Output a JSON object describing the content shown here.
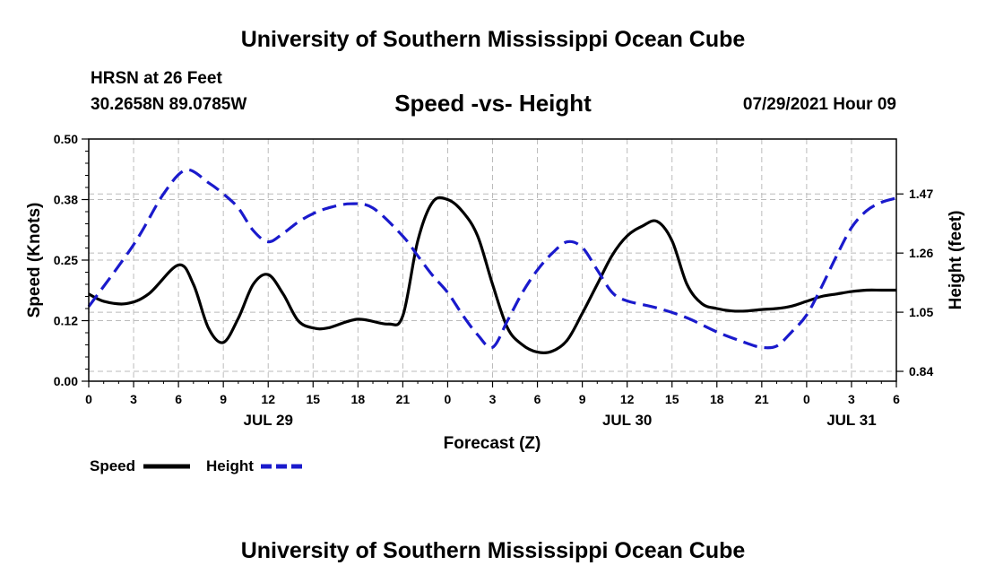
{
  "header": {
    "title": "University of Southern Mississippi Ocean Cube",
    "station": "HRSN at 26 Feet",
    "coords": "30.2658N  89.0785W",
    "subtitle": "Speed -vs- Height",
    "datetime": "07/29/2021 Hour 09"
  },
  "footer": {
    "title": "University of Southern Mississippi Ocean Cube"
  },
  "colors": {
    "speed": "#000000",
    "height": "#1a1acc",
    "grid": "#bbbbbb"
  },
  "chart_data": {
    "type": "line",
    "xlabel": "Forecast (Z)",
    "ylabel": "Speed (Knots)",
    "y2label": "Height (feet)",
    "xlim": [
      0,
      54
    ],
    "x_ticks": [
      0,
      3,
      6,
      9,
      12,
      15,
      18,
      21,
      24,
      27,
      30,
      33,
      36,
      39,
      42,
      45,
      48,
      51,
      54
    ],
    "x_tick_labels": [
      "0",
      "3",
      "6",
      "9",
      "12",
      "15",
      "18",
      "21",
      "0",
      "3",
      "6",
      "9",
      "12",
      "15",
      "18",
      "21",
      "0",
      "3",
      "6"
    ],
    "date_labels": [
      {
        "x": 12,
        "label": "JUL 29"
      },
      {
        "x": 36,
        "label": "JUL 30"
      },
      {
        "x": 51,
        "label": "JUL 31"
      }
    ],
    "ylim": [
      0,
      0.5
    ],
    "y_ticks": [
      0,
      0.125,
      0.25,
      0.375,
      0.5
    ],
    "y_tick_labels": [
      "0.00",
      "0.12",
      "0.25",
      "0.38",
      "0.50"
    ],
    "y2lim": [
      0.805,
      1.665
    ],
    "y2_ticks": [
      0.84,
      1.05,
      1.26,
      1.47
    ],
    "y2_tick_labels": [
      "0.84",
      "1.05",
      "1.26",
      "1.47"
    ],
    "series": [
      {
        "name": "Speed",
        "axis": "left",
        "style": "solid",
        "x": [
          0,
          1,
          2.5,
          4,
          6,
          7,
          8,
          9,
          10,
          11,
          12,
          13,
          14,
          15,
          16,
          18,
          20,
          21,
          22,
          23,
          24,
          25,
          26,
          27,
          28,
          29,
          30,
          31,
          32,
          33,
          34,
          35,
          36,
          37,
          38,
          39,
          40,
          41,
          42,
          43,
          44,
          45,
          46,
          47,
          48,
          49,
          50,
          51,
          52,
          53,
          54
        ],
        "values": [
          0.18,
          0.165,
          0.16,
          0.18,
          0.24,
          0.2,
          0.11,
          0.08,
          0.13,
          0.2,
          0.22,
          0.18,
          0.125,
          0.11,
          0.11,
          0.128,
          0.118,
          0.135,
          0.29,
          0.37,
          0.375,
          0.35,
          0.3,
          0.2,
          0.11,
          0.075,
          0.06,
          0.062,
          0.085,
          0.14,
          0.2,
          0.26,
          0.3,
          0.32,
          0.33,
          0.29,
          0.2,
          0.16,
          0.15,
          0.145,
          0.145,
          0.148,
          0.15,
          0.155,
          0.165,
          0.175,
          0.18,
          0.185,
          0.188,
          0.188,
          0.188
        ]
      },
      {
        "name": "Height",
        "axis": "right",
        "style": "dashed",
        "x": [
          0,
          3,
          5,
          6.5,
          8,
          9,
          10,
          11,
          12,
          13,
          14,
          15,
          16,
          17.5,
          19,
          21,
          22,
          23,
          24,
          25,
          26,
          27,
          28,
          29,
          30,
          31,
          32,
          33,
          34,
          35,
          36,
          38,
          40,
          42,
          44,
          45,
          46,
          47,
          48,
          49,
          50,
          51,
          52,
          53,
          54
        ],
        "values": [
          1.07,
          1.29,
          1.47,
          1.555,
          1.51,
          1.47,
          1.42,
          1.34,
          1.3,
          1.33,
          1.37,
          1.4,
          1.42,
          1.435,
          1.42,
          1.32,
          1.25,
          1.18,
          1.12,
          1.04,
          0.97,
          0.925,
          1.02,
          1.12,
          1.2,
          1.26,
          1.3,
          1.28,
          1.2,
          1.12,
          1.09,
          1.065,
          1.03,
          0.98,
          0.94,
          0.925,
          0.93,
          0.98,
          1.04,
          1.14,
          1.25,
          1.35,
          1.41,
          1.44,
          1.455
        ]
      }
    ],
    "legend": [
      {
        "label": "Speed",
        "style": "solid"
      },
      {
        "label": "Height",
        "style": "dashed"
      }
    ]
  }
}
